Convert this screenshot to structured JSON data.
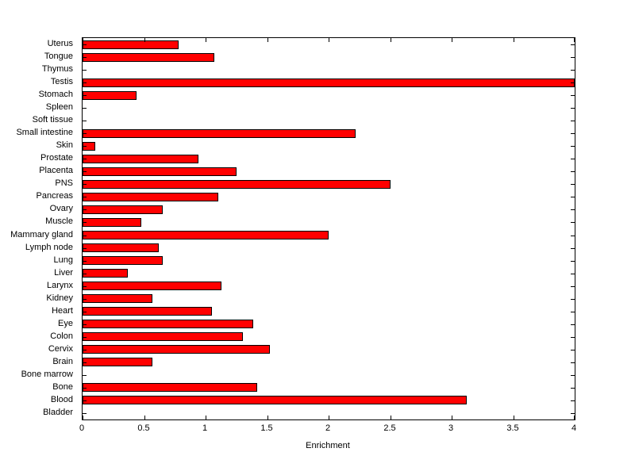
{
  "chart_data": {
    "type": "bar",
    "orientation": "horizontal",
    "title": "",
    "xlabel": "Enrichment",
    "ylabel": "",
    "xlim": [
      0,
      4
    ],
    "xticks": [
      0,
      0.5,
      1,
      1.5,
      2,
      2.5,
      3,
      3.5,
      4
    ],
    "xtick_labels": [
      "0",
      "0.5",
      "1",
      "1.5",
      "2",
      "2.5",
      "3",
      "3.5",
      "4"
    ],
    "grid": false,
    "legend": "none",
    "bar_color": "#ff0000",
    "bar_edge_color": "#000000",
    "categories_top_to_bottom": [
      "Uterus",
      "Tongue",
      "Thymus",
      "Testis",
      "Stomach",
      "Spleen",
      "Soft tissue",
      "Small intestine",
      "Skin",
      "Prostate",
      "Placenta",
      "PNS",
      "Pancreas",
      "Ovary",
      "Muscle",
      "Mammary gland",
      "Lymph node",
      "Lung",
      "Liver",
      "Larynx",
      "Kidney",
      "Heart",
      "Eye",
      "Colon",
      "Cervix",
      "Brain",
      "Bone marrow",
      "Bone",
      "Blood",
      "Bladder"
    ],
    "values_top_to_bottom": [
      0.78,
      1.07,
      0,
      4.0,
      0.44,
      0,
      0,
      2.22,
      0.1,
      0.94,
      1.25,
      2.5,
      1.1,
      0.65,
      0.48,
      2.0,
      0.62,
      0.65,
      0.37,
      1.13,
      0.57,
      1.05,
      1.39,
      1.3,
      1.52,
      0.57,
      0,
      1.42,
      3.12,
      0
    ]
  }
}
